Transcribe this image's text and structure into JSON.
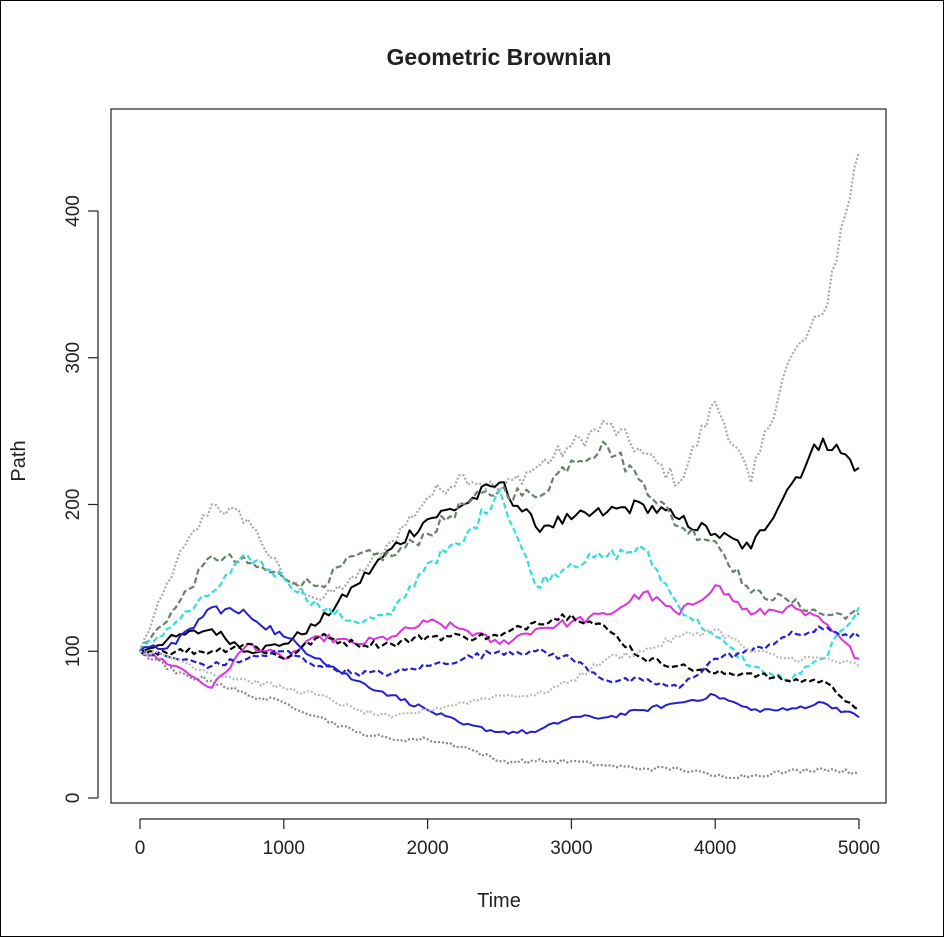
{
  "chart_data": {
    "type": "line",
    "title": "Geometric Brownian",
    "xlabel": "Time",
    "ylabel": "Path",
    "xlim": [
      0,
      5000
    ],
    "ylim": [
      0,
      450
    ],
    "x_ticks": [
      "0",
      "1000",
      "2000",
      "3000",
      "4000",
      "5000"
    ],
    "y_ticks": [
      "0",
      "100",
      "200",
      "300",
      "400"
    ],
    "grid": false,
    "legend": "none",
    "x": [
      0,
      250,
      500,
      750,
      1000,
      1250,
      1500,
      1750,
      2000,
      2250,
      2500,
      2750,
      3000,
      3250,
      3500,
      3750,
      4000,
      4250,
      4500,
      4750,
      5000
    ],
    "series": [
      {
        "color": "#aaaaaa",
        "style": "dotted",
        "values": [
          100,
          160,
          200,
          190,
          150,
          135,
          150,
          175,
          205,
          220,
          210,
          225,
          240,
          255,
          235,
          215,
          270,
          215,
          295,
          330,
          440
        ]
      },
      {
        "color": "#000000",
        "style": "solid",
        "values": [
          100,
          110,
          115,
          100,
          105,
          120,
          145,
          170,
          190,
          200,
          215,
          185,
          190,
          195,
          200,
          190,
          180,
          170,
          210,
          245,
          225
        ]
      },
      {
        "color": "#6b7f6b",
        "style": "dashed",
        "values": [
          100,
          130,
          165,
          160,
          150,
          145,
          165,
          165,
          180,
          200,
          210,
          205,
          230,
          240,
          215,
          185,
          175,
          140,
          135,
          125,
          125
        ]
      },
      {
        "color": "#33dddd",
        "style": "dashed",
        "values": [
          100,
          120,
          140,
          165,
          150,
          130,
          120,
          125,
          160,
          175,
          210,
          145,
          160,
          165,
          170,
          130,
          110,
          90,
          80,
          95,
          130
        ]
      },
      {
        "color": "#dd33dd",
        "style": "solid",
        "values": [
          100,
          90,
          75,
          105,
          95,
          110,
          105,
          110,
          120,
          115,
          105,
          115,
          120,
          125,
          140,
          125,
          145,
          125,
          130,
          120,
          95
        ]
      },
      {
        "color": "#000000",
        "style": "dashed",
        "values": [
          100,
          100,
          100,
          105,
          95,
          110,
          105,
          105,
          110,
          110,
          110,
          120,
          125,
          115,
          95,
          90,
          85,
          85,
          80,
          80,
          60
        ]
      },
      {
        "color": "#2222cc",
        "style": "solid",
        "values": [
          100,
          105,
          130,
          125,
          110,
          95,
          80,
          70,
          60,
          50,
          45,
          45,
          55,
          55,
          60,
          65,
          70,
          60,
          60,
          65,
          55
        ]
      },
      {
        "color": "#2222cc",
        "style": "dashed",
        "values": [
          100,
          95,
          90,
          95,
          100,
          90,
          85,
          85,
          90,
          95,
          100,
          100,
          95,
          80,
          80,
          75,
          95,
          100,
          110,
          115,
          110
        ]
      },
      {
        "color": "#888888",
        "style": "dotted",
        "values": [
          100,
          85,
          80,
          70,
          65,
          55,
          45,
          40,
          40,
          35,
          25,
          25,
          25,
          22,
          20,
          20,
          15,
          15,
          18,
          20,
          17
        ]
      },
      {
        "color": "#bbbbbb",
        "style": "dotted",
        "values": [
          100,
          95,
          85,
          80,
          75,
          70,
          60,
          55,
          60,
          65,
          70,
          70,
          80,
          95,
          100,
          110,
          115,
          100,
          95,
          95,
          90
        ]
      }
    ]
  }
}
